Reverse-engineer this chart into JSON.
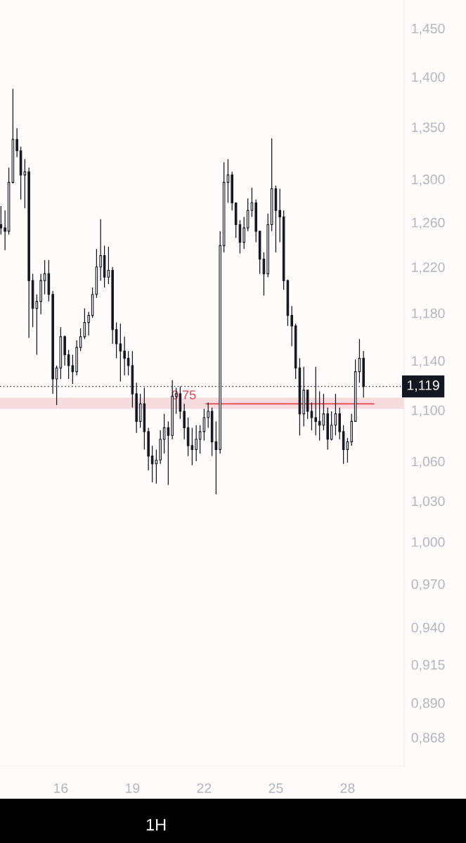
{
  "chart_data": {
    "type": "candlestick",
    "series": [
      {
        "color": "#131722",
        "x": [
          13.5,
          13.67,
          13.83,
          14,
          14.17,
          14.33,
          14.5,
          14.67,
          14.83,
          15,
          15.17,
          15.33,
          15.5,
          15.67,
          15.83,
          16,
          16.17,
          16.33,
          16.5,
          16.67,
          16.83,
          17,
          17.17,
          17.33,
          17.5,
          17.67,
          17.83,
          18,
          18.17,
          18.33,
          18.5,
          18.67,
          18.83,
          19,
          19.17,
          19.33,
          19.5,
          19.67,
          19.83,
          20,
          20.17,
          20.33,
          20.5,
          20.67,
          20.83,
          21,
          21.17,
          21.33,
          21.5,
          21.67,
          21.83,
          22,
          22.17,
          22.33,
          22.5,
          22.67,
          22.83,
          23,
          23.17,
          23.33,
          23.5,
          23.67,
          23.83,
          24,
          24.17,
          24.33,
          24.5,
          24.67,
          24.83,
          25,
          25.17,
          25.33,
          25.5,
          25.67,
          25.83,
          26,
          26.17,
          26.33,
          26.5,
          26.67,
          26.83,
          27,
          27.17,
          27.33,
          27.5,
          27.67,
          27.83,
          28,
          28.17,
          28.33,
          28.5,
          28.67
        ],
        "ohlc": [
          [
            1.258,
            1.275,
            1.249,
            1.255
          ],
          [
            1.255,
            1.271,
            1.235,
            1.252
          ],
          [
            1.252,
            1.311,
            1.249,
            1.297
          ],
          [
            1.297,
            1.388,
            1.296,
            1.338
          ],
          [
            1.338,
            1.349,
            1.321,
            1.327
          ],
          [
            1.327,
            1.331,
            1.281,
            1.304
          ],
          [
            1.304,
            1.319,
            1.273,
            1.307
          ],
          [
            1.307,
            1.311,
            1.159,
            1.208
          ],
          [
            1.208,
            1.214,
            1.168,
            1.184
          ],
          [
            1.184,
            1.196,
            1.145,
            1.19
          ],
          [
            1.19,
            1.214,
            1.179,
            1.208
          ],
          [
            1.208,
            1.226,
            1.196,
            1.214
          ],
          [
            1.214,
            1.226,
            1.19,
            1.196
          ],
          [
            1.196,
            1.199,
            1.113,
            1.125
          ],
          [
            1.125,
            1.136,
            1.104,
            1.134
          ],
          [
            1.134,
            1.168,
            1.125,
            1.16
          ],
          [
            1.16,
            1.161,
            1.136,
            1.145
          ],
          [
            1.145,
            1.149,
            1.125,
            1.136
          ],
          [
            1.136,
            1.145,
            1.121,
            1.131
          ],
          [
            1.131,
            1.157,
            1.128,
            1.151
          ],
          [
            1.151,
            1.167,
            1.148,
            1.16
          ],
          [
            1.16,
            1.184,
            1.158,
            1.172
          ],
          [
            1.172,
            1.181,
            1.161,
            1.178
          ],
          [
            1.178,
            1.202,
            1.176,
            1.196
          ],
          [
            1.196,
            1.236,
            1.193,
            1.22
          ],
          [
            1.22,
            1.263,
            1.208,
            1.23
          ],
          [
            1.23,
            1.239,
            1.202,
            1.211
          ],
          [
            1.211,
            1.238,
            1.205,
            1.217
          ],
          [
            1.217,
            1.22,
            1.154,
            1.166
          ],
          [
            1.166,
            1.172,
            1.142,
            1.154
          ],
          [
            1.154,
            1.171,
            1.123,
            1.148
          ],
          [
            1.148,
            1.16,
            1.128,
            1.142
          ],
          [
            1.142,
            1.148,
            1.128,
            1.136
          ],
          [
            1.136,
            1.148,
            1.102,
            1.113
          ],
          [
            1.113,
            1.122,
            1.082,
            1.091
          ],
          [
            1.091,
            1.113,
            1.086,
            1.105
          ],
          [
            1.105,
            1.118,
            1.069,
            1.083
          ],
          [
            1.083,
            1.086,
            1.053,
            1.064
          ],
          [
            1.064,
            1.072,
            1.044,
            1.058
          ],
          [
            1.058,
            1.069,
            1.043,
            1.061
          ],
          [
            1.061,
            1.084,
            1.058,
            1.077
          ],
          [
            1.077,
            1.097,
            1.066,
            1.086
          ],
          [
            1.086,
            1.091,
            1.042,
            1.08
          ],
          [
            1.08,
            1.124,
            1.077,
            1.111
          ],
          [
            1.111,
            1.118,
            1.097,
            1.113
          ],
          [
            1.113,
            1.119,
            1.093,
            1.099
          ],
          [
            1.099,
            1.105,
            1.077,
            1.086
          ],
          [
            1.086,
            1.094,
            1.064,
            1.072
          ],
          [
            1.072,
            1.086,
            1.057,
            1.069
          ],
          [
            1.069,
            1.088,
            1.06,
            1.077
          ],
          [
            1.077,
            1.088,
            1.066,
            1.083
          ],
          [
            1.083,
            1.101,
            1.076,
            1.094
          ],
          [
            1.094,
            1.106,
            1.086,
            1.099
          ],
          [
            1.099,
            1.102,
            1.064,
            1.075
          ],
          [
            1.075,
            1.091,
            1.035,
            1.069
          ],
          [
            1.069,
            1.252,
            1.066,
            1.239
          ],
          [
            1.239,
            1.316,
            1.233,
            1.297
          ],
          [
            1.297,
            1.319,
            1.278,
            1.304
          ],
          [
            1.304,
            1.307,
            1.271,
            1.278
          ],
          [
            1.278,
            1.278,
            1.246,
            1.258
          ],
          [
            1.258,
            1.262,
            1.232,
            1.242
          ],
          [
            1.242,
            1.265,
            1.236,
            1.255
          ],
          [
            1.255,
            1.282,
            1.252,
            1.271
          ],
          [
            1.271,
            1.292,
            1.265,
            1.278
          ],
          [
            1.278,
            1.281,
            1.242,
            1.252
          ],
          [
            1.252,
            1.252,
            1.214,
            1.227
          ],
          [
            1.227,
            1.233,
            1.195,
            1.214
          ],
          [
            1.214,
            1.268,
            1.211,
            1.258
          ],
          [
            1.258,
            1.339,
            1.252,
            1.291
          ],
          [
            1.291,
            1.294,
            1.233,
            1.271
          ],
          [
            1.271,
            1.291,
            1.242,
            1.265
          ],
          [
            1.265,
            1.271,
            1.2,
            1.208
          ],
          [
            1.208,
            1.209,
            1.169,
            1.178
          ],
          [
            1.178,
            1.186,
            1.152,
            1.169
          ],
          [
            1.169,
            1.171,
            1.125,
            1.134
          ],
          [
            1.134,
            1.142,
            1.08,
            1.097
          ],
          [
            1.097,
            1.135,
            1.087,
            1.116
          ],
          [
            1.116,
            1.116,
            1.093,
            1.099
          ],
          [
            1.099,
            1.106,
            1.084,
            1.094
          ],
          [
            1.094,
            1.135,
            1.08,
            1.091
          ],
          [
            1.091,
            1.115,
            1.076,
            1.088
          ],
          [
            1.088,
            1.113,
            1.084,
            1.097
          ],
          [
            1.097,
            1.102,
            1.069,
            1.077
          ],
          [
            1.077,
            1.099,
            1.076,
            1.088
          ],
          [
            1.088,
            1.113,
            1.08,
            1.097
          ],
          [
            1.097,
            1.102,
            1.077,
            1.083
          ],
          [
            1.083,
            1.088,
            1.058,
            1.069
          ],
          [
            1.069,
            1.078,
            1.059,
            1.075
          ],
          [
            1.075,
            1.097,
            1.072,
            1.091
          ],
          [
            1.091,
            1.141,
            1.091,
            1.131
          ],
          [
            1.131,
            1.158,
            1.122,
            1.142
          ],
          [
            1.142,
            1.148,
            1.11,
            1.119
          ]
        ]
      },
      {
        "type": "line",
        "name": "0.75",
        "color": "#e5414f",
        "x": [
          22.08,
          29.1
        ],
        "values": [
          1.105,
          1.105
        ]
      }
    ],
    "xlim": [
      13.46,
      30.37
    ],
    "xticks": [
      16,
      19,
      22,
      25,
      28
    ],
    "ylim": [
      0.85,
      1.48
    ],
    "log": true,
    "yticks": [
      {
        "value": 1.45,
        "label": "1,450"
      },
      {
        "value": 1.4,
        "label": "1,400"
      },
      {
        "value": 1.35,
        "label": "1,350"
      },
      {
        "value": 1.3,
        "label": "1,300"
      },
      {
        "value": 1.26,
        "label": "1,260"
      },
      {
        "value": 1.22,
        "label": "1,220"
      },
      {
        "value": 1.18,
        "label": "1,180"
      },
      {
        "value": 1.14,
        "label": "1,140"
      },
      {
        "value": 1.1,
        "label": "1,100"
      },
      {
        "value": 1.06,
        "label": "1,060"
      },
      {
        "value": 1.03,
        "label": "1,030"
      },
      {
        "value": 1.0,
        "label": "1,000"
      },
      {
        "value": 0.97,
        "label": "0,970"
      },
      {
        "value": 0.94,
        "label": "0,940"
      },
      {
        "value": 0.915,
        "label": "0,915"
      },
      {
        "value": 0.89,
        "label": "0,890"
      },
      {
        "value": 0.868,
        "label": "0,868"
      }
    ],
    "ref_lines": [
      {
        "axis": "y",
        "value": 1.119,
        "label": "1,119",
        "color": "#131722",
        "line_style": "dotted"
      }
    ],
    "bands": [
      {
        "axis": "y",
        "from": 1.101,
        "to": 1.11,
        "color": "#f6dcdf"
      }
    ],
    "grid": false,
    "annotations": [
      "1H"
    ]
  }
}
